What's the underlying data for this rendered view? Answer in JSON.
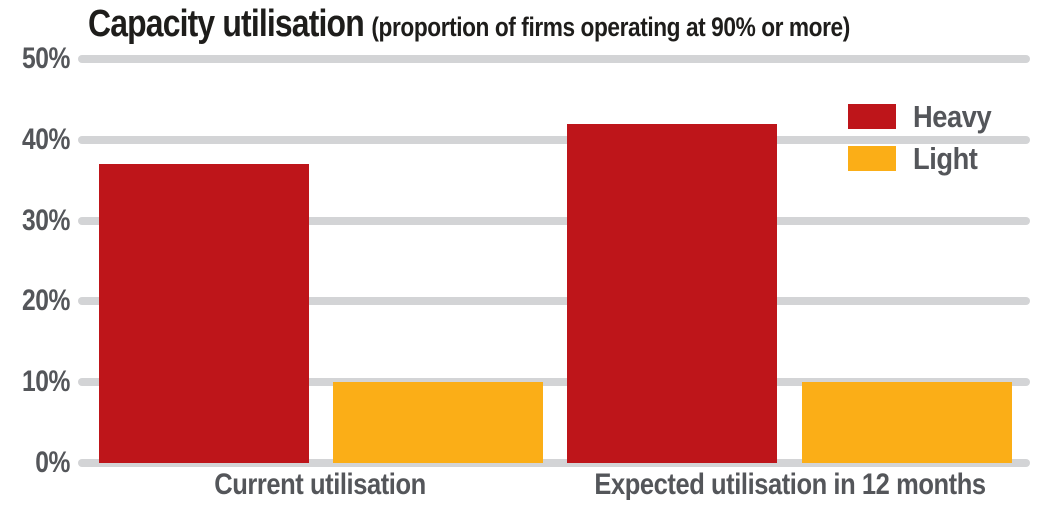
{
  "chart_data": {
    "type": "bar",
    "title": "Capacity utilisation",
    "subtitle": "(proportion of firms operating at 90% or more)",
    "categories": [
      "Current utilisation",
      "Expected utilisation in 12 months"
    ],
    "series": [
      {
        "name": "Heavy",
        "color": "#be151a",
        "values": [
          37,
          42
        ]
      },
      {
        "name": "Light",
        "color": "#fbae17",
        "values": [
          10,
          10
        ]
      }
    ],
    "unit": "%",
    "ylim": [
      0,
      50
    ],
    "yticks": [
      {
        "value": 50,
        "label": "50%"
      },
      {
        "value": 40,
        "label": "40%"
      },
      {
        "value": 30,
        "label": "30%"
      },
      {
        "value": 20,
        "label": "20%"
      },
      {
        "value": 10,
        "label": "10%"
      },
      {
        "value": 0,
        "label": "0%"
      }
    ],
    "grid": true,
    "legend_position": "top-right"
  },
  "colors": {
    "background": "#ffffff",
    "title": "#1e1d1b",
    "text": "#54565a",
    "gridline": "#d3d4d6",
    "bar_heavy": "#be151a",
    "bar_light": "#fbae17"
  }
}
